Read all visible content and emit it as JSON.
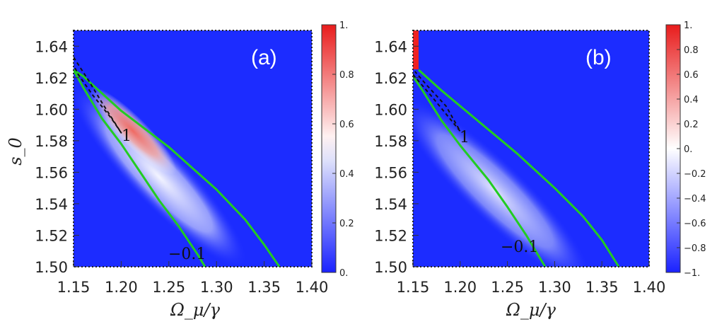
{
  "chart_data": [
    {
      "type": "heatmap",
      "panel": "(a)",
      "xlabel": "Ω_μ/γ",
      "ylabel": "s_0",
      "xlim": [
        1.15,
        1.4
      ],
      "ylim": [
        1.5,
        1.65
      ],
      "x_ticks": [
        "1.15",
        "1.20",
        "1.25",
        "1.30",
        "1.35",
        "1.40"
      ],
      "y_ticks": [
        "1.50",
        "1.52",
        "1.54",
        "1.56",
        "1.58",
        "1.60",
        "1.62",
        "1.64"
      ],
      "colorbar": {
        "min": 0,
        "max": 1,
        "labels": [
          "0.",
          "0.2",
          "0.4",
          "0.6",
          "0.8",
          "1."
        ]
      },
      "contour_labels": [
        "1",
        "−0.1"
      ],
      "contours": [
        {
          "value": "−0.1",
          "color": "#22cc22",
          "style": "solid",
          "points": [
            [
              1.15,
              1.625
            ],
            [
              1.16,
              1.614
            ],
            [
              1.18,
              1.594
            ],
            [
              1.2,
              1.578
            ],
            [
              1.22,
              1.56
            ],
            [
              1.24,
              1.542
            ],
            [
              1.26,
              1.526
            ],
            [
              1.28,
              1.508
            ],
            [
              1.288,
              1.5
            ]
          ]
        },
        {
          "value": "−0.1",
          "color": "#22cc22",
          "style": "solid",
          "points": [
            [
              1.15,
              1.625
            ],
            [
              1.16,
              1.621
            ],
            [
              1.2,
              1.599
            ],
            [
              1.25,
              1.576
            ],
            [
              1.3,
              1.549
            ],
            [
              1.33,
              1.53
            ],
            [
              1.35,
              1.514
            ],
            [
              1.366,
              1.5
            ]
          ]
        },
        {
          "value": "1",
          "color": "#111111",
          "style": "dashed",
          "points": [
            [
              1.15,
              1.633
            ],
            [
              1.165,
              1.619
            ],
            [
              1.18,
              1.604
            ],
            [
              1.2,
              1.585
            ],
            [
              1.19,
              1.594
            ],
            [
              1.17,
              1.609
            ],
            [
              1.155,
              1.622
            ],
            [
              1.15,
              1.628
            ]
          ]
        }
      ]
    },
    {
      "type": "heatmap",
      "panel": "(b)",
      "xlabel": "Ω_μ/γ",
      "ylabel": "",
      "xlim": [
        1.15,
        1.4
      ],
      "ylim": [
        1.5,
        1.65
      ],
      "x_ticks": [
        "1.15",
        "1.20",
        "1.25",
        "1.30",
        "1.35",
        "1.40"
      ],
      "y_ticks": [
        "1.50",
        "1.52",
        "1.54",
        "1.56",
        "1.58",
        "1.60",
        "1.62",
        "1.64"
      ],
      "colorbar": {
        "min": -1,
        "max": 1,
        "labels": [
          "−1.",
          "−0.8",
          "−0.6",
          "−0.4",
          "−0.2",
          "0.",
          "0.2",
          "0.4",
          "0.6",
          "0.8",
          "1."
        ]
      },
      "contour_labels": [
        "1",
        "−0.1"
      ],
      "contours": [
        {
          "value": "−0.1",
          "color": "#22cc22",
          "style": "solid",
          "points": [
            [
              1.15,
              1.621
            ],
            [
              1.16,
              1.612
            ],
            [
              1.18,
              1.593
            ],
            [
              1.2,
              1.577
            ],
            [
              1.23,
              1.555
            ],
            [
              1.25,
              1.538
            ],
            [
              1.27,
              1.52
            ],
            [
              1.29,
              1.5
            ]
          ]
        },
        {
          "value": "−0.1",
          "color": "#22cc22",
          "style": "solid",
          "points": [
            [
              1.156,
              1.625
            ],
            [
              1.18,
              1.612
            ],
            [
              1.22,
              1.592
            ],
            [
              1.26,
              1.572
            ],
            [
              1.3,
              1.55
            ],
            [
              1.33,
              1.532
            ],
            [
              1.35,
              1.517
            ],
            [
              1.368,
              1.5
            ]
          ]
        },
        {
          "value": "1",
          "color": "#111111",
          "style": "dashed",
          "points": [
            [
              1.15,
              1.622
            ],
            [
              1.17,
              1.608
            ],
            [
              1.2,
              1.586
            ],
            [
              1.185,
              1.602
            ],
            [
              1.165,
              1.615
            ],
            [
              1.152,
              1.624
            ]
          ]
        }
      ]
    }
  ]
}
